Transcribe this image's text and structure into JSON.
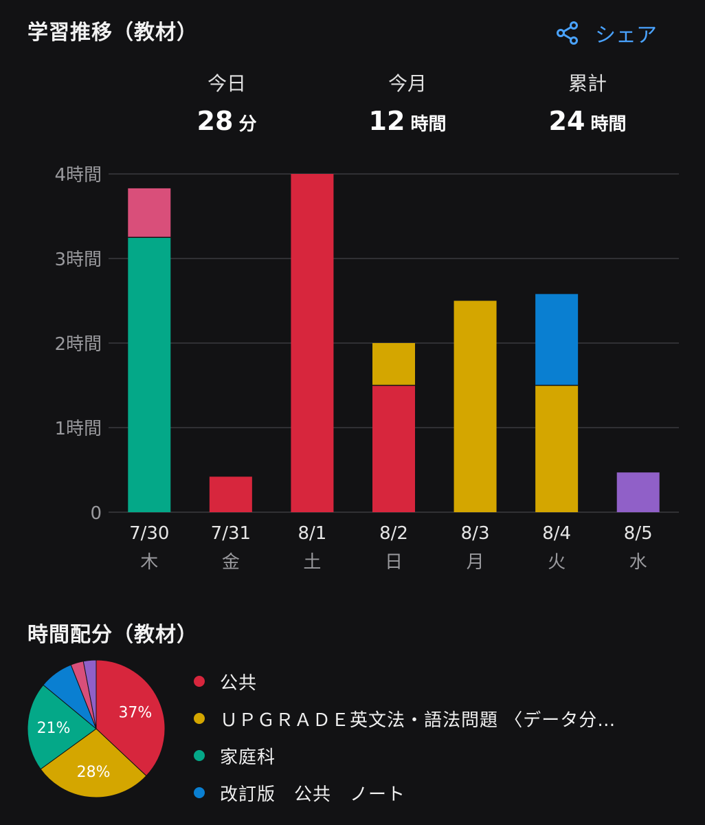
{
  "header": {
    "title": "学習推移（教材）",
    "share_label": "シェア"
  },
  "stats": [
    {
      "label": "今日",
      "value": "28",
      "unit": "分"
    },
    {
      "label": "今月",
      "value": "12",
      "unit": "時間"
    },
    {
      "label": "累計",
      "value": "24",
      "unit": "時間"
    }
  ],
  "colors": {
    "公共": "#d7263d",
    "UPGRADE": "#d4a600",
    "家庭科": "#04a888",
    "改訂版ノート": "#0a7fd1",
    "pink": "#d94f7a",
    "purple": "#9060c8",
    "grid": "#3a3a3e",
    "axis_text": "#9a9a9e"
  },
  "chart_data": [
    {
      "type": "bar",
      "stacked": true,
      "categories": [
        "7/30",
        "7/31",
        "8/1",
        "8/2",
        "8/3",
        "8/4",
        "8/5"
      ],
      "weekdays": [
        "木",
        "金",
        "土",
        "日",
        "月",
        "火",
        "水"
      ],
      "ylim": [
        0,
        4
      ],
      "yticks": [
        {
          "value": 0,
          "label": "0"
        },
        {
          "value": 1,
          "label": "1時間"
        },
        {
          "value": 2,
          "label": "2時間"
        },
        {
          "value": 3,
          "label": "3時間"
        },
        {
          "value": 4,
          "label": "4時間"
        }
      ],
      "grid": true,
      "series": [
        {
          "color_key": "家庭科",
          "values": [
            3.25,
            0,
            0,
            0,
            0,
            0,
            0
          ]
        },
        {
          "color_key": "pink",
          "values": [
            0.58,
            0,
            0,
            0,
            0,
            0,
            0
          ]
        },
        {
          "color_key": "公共",
          "values": [
            0,
            0.42,
            4.0,
            1.5,
            0,
            0,
            0
          ]
        },
        {
          "color_key": "UPGRADE",
          "values": [
            0,
            0,
            0,
            0.5,
            2.5,
            1.5,
            0
          ]
        },
        {
          "color_key": "改訂版ノート",
          "values": [
            0,
            0,
            0,
            0,
            0,
            1.08,
            0
          ]
        },
        {
          "color_key": "purple",
          "values": [
            0,
            0,
            0,
            0,
            0,
            0,
            0.47
          ]
        }
      ]
    },
    {
      "type": "pie",
      "title": "時間配分（教材）",
      "slices": [
        {
          "color_key": "公共",
          "value": 37,
          "label": "37%"
        },
        {
          "color_key": "UPGRADE",
          "value": 28,
          "label": "28%"
        },
        {
          "color_key": "家庭科",
          "value": 21,
          "label": "21%"
        },
        {
          "color_key": "改訂版ノート",
          "value": 8,
          "label": ""
        },
        {
          "color_key": "pink",
          "value": 3,
          "label": ""
        },
        {
          "color_key": "purple",
          "value": 3,
          "label": ""
        }
      ],
      "legend": [
        {
          "color_key": "公共",
          "label": "公共"
        },
        {
          "color_key": "UPGRADE",
          "label": "ＵＰＧＲＡＤＥ英文法・語法問題 〈データ分…"
        },
        {
          "color_key": "家庭科",
          "label": "家庭科"
        },
        {
          "color_key": "改訂版ノート",
          "label": "改訂版　公共　ノート"
        }
      ]
    }
  ]
}
